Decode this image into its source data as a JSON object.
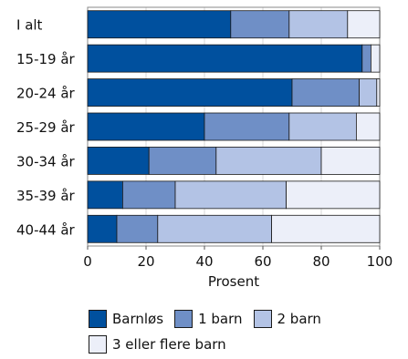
{
  "chart_data": {
    "type": "bar",
    "orientation": "horizontal",
    "stacked": true,
    "categories": [
      "I alt",
      "15-19 år",
      "20-24 år",
      "25-29 år",
      "30-34 år",
      "35-39 år",
      "40-44 år"
    ],
    "series": [
      {
        "name": "Barnløs",
        "color": "#00509e",
        "values": [
          49,
          94,
          70,
          40,
          21,
          12,
          10
        ]
      },
      {
        "name": "1 barn",
        "color": "#6f8fc6",
        "values": [
          20,
          3,
          23,
          29,
          23,
          18,
          14
        ]
      },
      {
        "name": "2 barn",
        "color": "#b3c3e5",
        "values": [
          20,
          0,
          6,
          23,
          36,
          38,
          39
        ]
      },
      {
        "name": "3 eller flere barn",
        "color": "#eceff9",
        "values": [
          11,
          3,
          1,
          8,
          20,
          32,
          37
        ]
      }
    ],
    "xlabel": "Prosent",
    "ylabel": "",
    "xlim": [
      0,
      100
    ],
    "xticks": [
      0,
      20,
      40,
      60,
      80,
      100
    ],
    "grid": "vertical",
    "legend_position": "bottom"
  },
  "legend": {
    "items": [
      "Barnløs",
      "1 barn",
      "2 barn",
      "3 eller flere barn"
    ]
  }
}
